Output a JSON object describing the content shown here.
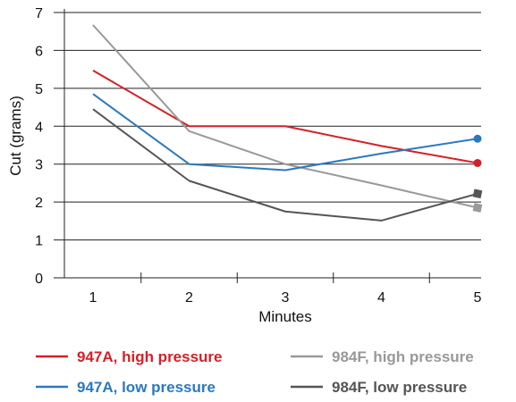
{
  "chart_data": {
    "type": "line",
    "x": [
      1,
      2,
      3,
      4,
      5
    ],
    "xlabel": "Minutes",
    "ylabel": "Cut (grams)",
    "ylim": [
      0,
      7
    ],
    "xticks": [
      "1",
      "2",
      "3",
      "4",
      "5"
    ],
    "yticks": [
      "0",
      "1",
      "2",
      "3",
      "4",
      "5",
      "6",
      "7"
    ],
    "grid": "horizontal",
    "legend_position": "bottom",
    "series": [
      {
        "name": "947A, high pressure",
        "color": "#d42027",
        "marker": "circle",
        "values": [
          5.47,
          4.0,
          4.0,
          3.48,
          3.03
        ]
      },
      {
        "name": "984F, high pressure",
        "color": "#999999",
        "marker": "square",
        "values": [
          6.67,
          3.87,
          3.0,
          2.44,
          1.85
        ]
      },
      {
        "name": "947A, low pressure",
        "color": "#2b78c0",
        "marker": "circle",
        "values": [
          4.85,
          3.0,
          2.84,
          3.28,
          3.67
        ]
      },
      {
        "name": "984F, low pressure",
        "color": "#555555",
        "marker": "square",
        "values": [
          4.45,
          2.56,
          1.75,
          1.51,
          2.22
        ]
      }
    ]
  }
}
